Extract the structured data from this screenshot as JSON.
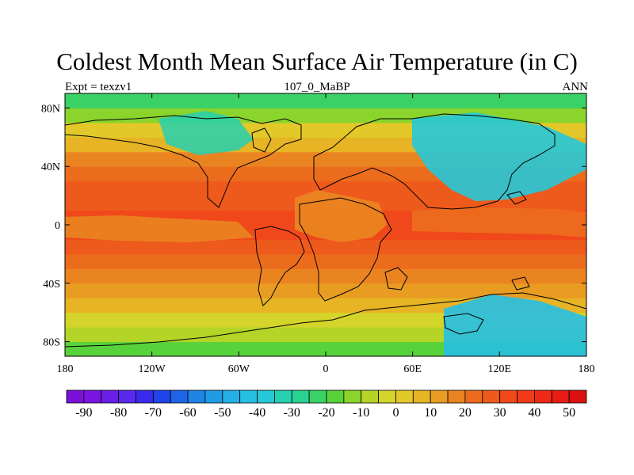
{
  "title": "Coldest Month Mean Surface Air Temperature (in C)",
  "left_label": "Expt = texzv1",
  "center_label": "107_0_MaBP",
  "right_label": "ANN",
  "chart_data": {
    "type": "heatmap",
    "projection": "cylindrical-equidistant",
    "variable": "Coldest Month Mean Surface Air Temperature",
    "units": "C",
    "x_range": [
      -180,
      180
    ],
    "y_range": [
      -90,
      90
    ],
    "x_ticks": [
      {
        "value": -180,
        "label": "180"
      },
      {
        "value": -120,
        "label": "120W"
      },
      {
        "value": -60,
        "label": "60W"
      },
      {
        "value": 0,
        "label": "0"
      },
      {
        "value": 60,
        "label": "60E"
      },
      {
        "value": 120,
        "label": "120E"
      },
      {
        "value": 180,
        "label": "180"
      }
    ],
    "y_ticks": [
      {
        "value": 80,
        "label": "80N"
      },
      {
        "value": 40,
        "label": "40N"
      },
      {
        "value": 0,
        "label": "0"
      },
      {
        "value": -40,
        "label": "40S"
      },
      {
        "value": -80,
        "label": "80S"
      }
    ],
    "colorbar": {
      "min": -95,
      "max": 55,
      "step": 5,
      "labels": [
        {
          "value": -90,
          "label": "-90"
        },
        {
          "value": -80,
          "label": "-80"
        },
        {
          "value": -70,
          "label": "-70"
        },
        {
          "value": -60,
          "label": "-60"
        },
        {
          "value": -50,
          "label": "-50"
        },
        {
          "value": -40,
          "label": "-40"
        },
        {
          "value": -30,
          "label": "-30"
        },
        {
          "value": -20,
          "label": "-20"
        },
        {
          "value": -10,
          "label": "-10"
        },
        {
          "value": 0,
          "label": "0"
        },
        {
          "value": 10,
          "label": "10"
        },
        {
          "value": 20,
          "label": "20"
        },
        {
          "value": 30,
          "label": "30"
        },
        {
          "value": 40,
          "label": "40"
        },
        {
          "value": 50,
          "label": "50"
        }
      ],
      "colors": [
        "#7b10d8",
        "#7a14e0",
        "#6a1ee6",
        "#5a28ee",
        "#3a2af0",
        "#1f44e8",
        "#1e64e6",
        "#1e84e6",
        "#1e9ce6",
        "#22b0e6",
        "#26bfe4",
        "#26c8d8",
        "#26d0b0",
        "#2ad290",
        "#3ad266",
        "#58d23a",
        "#8ad42c",
        "#b4d428",
        "#d4d42a",
        "#e2c828",
        "#e6b424",
        "#e89c22",
        "#ea8420",
        "#ec6c1e",
        "#ee5a1c",
        "#f0481a",
        "#f03a18",
        "#ee2a16",
        "#e81c14",
        "#dc1010"
      ]
    },
    "latitude_bands": [
      {
        "lat": 90,
        "value": -28
      },
      {
        "lat": 80,
        "value": -22
      },
      {
        "lat": 70,
        "value": -4
      },
      {
        "lat": 60,
        "value": 4
      },
      {
        "lat": 50,
        "value": 14
      },
      {
        "lat": 40,
        "value": 20
      },
      {
        "lat": 30,
        "value": 24
      },
      {
        "lat": 20,
        "value": 28
      },
      {
        "lat": 10,
        "value": 31
      },
      {
        "lat": 0,
        "value": 32
      },
      {
        "lat": -10,
        "value": 30
      },
      {
        "lat": -20,
        "value": 26
      },
      {
        "lat": -30,
        "value": 22
      },
      {
        "lat": -40,
        "value": 17
      },
      {
        "lat": -50,
        "value": 10
      },
      {
        "lat": -60,
        "value": 2
      },
      {
        "lat": -70,
        "value": -6
      },
      {
        "lat": -80,
        "value": -14
      },
      {
        "lat": -90,
        "value": -22
      }
    ]
  }
}
